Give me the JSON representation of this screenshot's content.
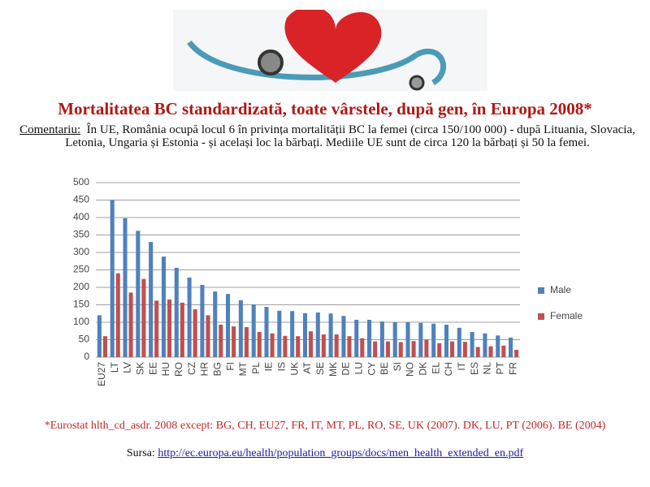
{
  "title": "Mortalitatea BC standardizată, toate vârstele, după gen, în Europa 2008*",
  "comment": {
    "label": "Comentariu:",
    "text": "În UE, România ocupă locul 6 în privința mortalității BC la femei (circa 150/100 000) - după Lituania, Slovacia, Letonia, Ungaria și Estonia - și același loc la bărbați. Mediile UE sunt de circa 120 la bărbați și 50 la femei."
  },
  "chart_data": {
    "type": "bar",
    "categories": [
      "EU27",
      "LT",
      "LV",
      "SK",
      "EE",
      "HU",
      "RO",
      "CZ",
      "HR",
      "BG",
      "FI",
      "MT",
      "PL",
      "IE",
      "IS",
      "UK",
      "AT",
      "SE",
      "MK",
      "DE",
      "LU",
      "CY",
      "BE",
      "SI",
      "NO",
      "DK",
      "EL",
      "CH",
      "IT",
      "ES",
      "NL",
      "PT",
      "FR"
    ],
    "series": [
      {
        "name": "Male",
        "color": "#4f81bd",
        "values": [
          120,
          450,
          398,
          362,
          330,
          288,
          256,
          228,
          207,
          188,
          181,
          163,
          151,
          144,
          133,
          132,
          126,
          128,
          125,
          118,
          107,
          107,
          102,
          100,
          100,
          98,
          96,
          93,
          84,
          72,
          68,
          62,
          56
        ]
      },
      {
        "name": "Female",
        "color": "#c0504d",
        "values": [
          60,
          240,
          185,
          224,
          162,
          165,
          156,
          137,
          120,
          93,
          88,
          86,
          72,
          68,
          61,
          60,
          74,
          65,
          65,
          60,
          54,
          45,
          45,
          43,
          46,
          50,
          40,
          45,
          44,
          29,
          31,
          33,
          21
        ]
      }
    ],
    "ylim": [
      0,
      500
    ],
    "yticks": [
      0,
      50,
      100,
      150,
      200,
      250,
      300,
      350,
      400,
      450,
      500
    ],
    "grid": true,
    "legend": "right"
  },
  "footnote": "*Eurostat hlth_cd_asdr. 2008 except: BG, CH, EU27, FR, IT, MT, PL, RO, SE, UK (2007). DK, LU, PT (2006). BE (2004)",
  "source": {
    "label": "Sursa:",
    "url": "http://ec.europa.eu/health/population_groups/docs/men_health_extended_en.pdf"
  }
}
